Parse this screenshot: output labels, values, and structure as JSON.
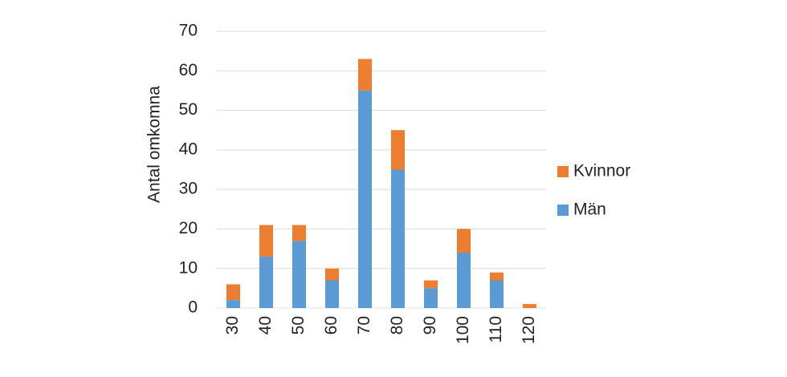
{
  "chart_data": {
    "type": "stacked-bar",
    "y_label": "Antal omkomna",
    "categories": [
      "30",
      "40",
      "50",
      "60",
      "70",
      "80",
      "90",
      "100",
      "110",
      "120"
    ],
    "series": [
      {
        "name": "Män",
        "color": "#5b9bd5",
        "values": [
          2,
          13,
          17,
          7,
          55,
          35,
          5,
          14,
          7,
          0
        ]
      },
      {
        "name": "Kvinnor",
        "color": "#ed7d31",
        "values": [
          4,
          8,
          4,
          3,
          8,
          10,
          2,
          6,
          2,
          1
        ]
      }
    ],
    "ylim": [
      0,
      70
    ],
    "yticks": [
      0,
      10,
      20,
      30,
      40,
      50,
      60,
      70
    ],
    "grid": true,
    "legend": "right"
  }
}
